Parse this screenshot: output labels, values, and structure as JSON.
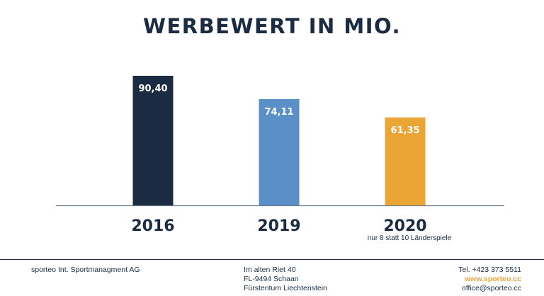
{
  "colors": {
    "navy": "#1a2b42",
    "blue": "#5a8fc8",
    "orange": "#eba534",
    "axis": "#6b7b8c"
  },
  "chart_data": {
    "type": "bar",
    "title": "WERBEWERT IN MIO.",
    "categories": [
      "2016",
      "2019",
      "2020"
    ],
    "values": [
      90.4,
      74.11,
      61.35
    ],
    "value_labels": [
      "90,40",
      "74,11",
      "61,35"
    ],
    "bar_colors": [
      "#1a2b42",
      "#5a8fc8",
      "#eba534"
    ],
    "annotations": [
      {
        "category": "2020",
        "text": "nur 8 statt 10 Länderspiele"
      }
    ],
    "ylim": [
      0,
      100
    ],
    "grid": false,
    "legend": "none"
  },
  "footer": {
    "company": "sporteo Int. Sportmanagment AG",
    "address_line1": "Im alten Riet 40",
    "address_line2": "FL-9494 Schaan",
    "address_line3": "Fürstentum Liechtenstein",
    "phone": "Tel. +423 373 5511",
    "website": "www.sporteo.cc",
    "email": "office@sporteo.cc"
  }
}
